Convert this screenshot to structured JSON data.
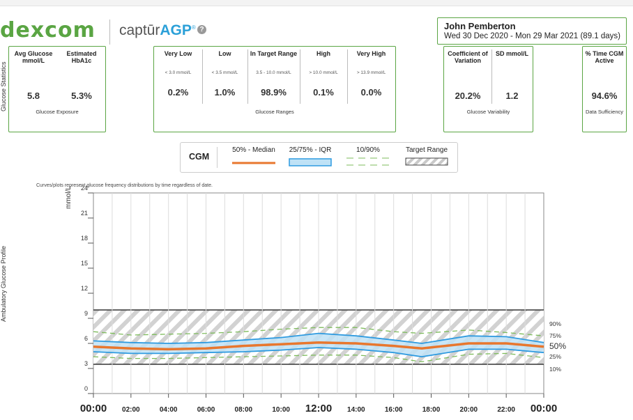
{
  "header": {
    "brand": "dexcom",
    "product_prefix": "captūr",
    "product_suffix": "AGP",
    "product_mark": "®",
    "help": "?",
    "patient_name": "John Pemberton",
    "date_range": "Wed 30 Dec 2020 - Mon 29 Mar 2021",
    "days": "(89.1 days)"
  },
  "side_labels": {
    "stats": "Glucose Statistics",
    "profile": "Ambulatory Glucose Profile"
  },
  "exposure": {
    "avg_title": "Avg Glucose mmol/L",
    "avg_value": "5.8",
    "a1c_title": "Estimated HbA1c",
    "a1c_value": "5.3%",
    "footer": "Glucose Exposure"
  },
  "ranges": {
    "items": [
      {
        "title": "Very Low",
        "sub": "< 3.0 mmol/L",
        "value": "0.2%"
      },
      {
        "title": "Low",
        "sub": "< 3.5 mmol/L",
        "value": "1.0%"
      },
      {
        "title": "In Target Range",
        "sub": "3.5 - 10.0 mmol/L",
        "value": "98.9%"
      },
      {
        "title": "High",
        "sub": "> 10.0 mmol/L",
        "value": "0.1%"
      },
      {
        "title": "Very High",
        "sub": "> 13.9 mmol/L",
        "value": "0.0%"
      }
    ],
    "footer": "Glucose Ranges"
  },
  "variability": {
    "cv_title": "Coefficient of Variation",
    "cv_value": "20.2%",
    "sd_title": "SD mmol/L",
    "sd_value": "1.2",
    "footer": "Glucose Variability"
  },
  "sufficiency": {
    "title": "% Time CGM Active",
    "value": "94.6%",
    "footer": "Data Sufficiency"
  },
  "legend": {
    "title": "CGM",
    "median": "50% - Median",
    "iqr": "25/75% - IQR",
    "pct": "10/90%",
    "target": "Target Range"
  },
  "note": "Curves/plots represent glucose frequency distributions by time regardless of date.",
  "colors": {
    "brand_green": "#5aa543",
    "median": "#e8772e",
    "iqr_line": "#2f9be0",
    "iqr_fill": "#bfe2f6",
    "pct_line": "#7dbb5b",
    "target_stripe": "#c9c9c9",
    "accent_blue": "#2ba0d8"
  },
  "chart_data": {
    "type": "line",
    "ylabel": "mmol/L",
    "ylim": [
      0,
      24
    ],
    "yticks": [
      "0",
      "3",
      "6",
      "9",
      "12",
      "15",
      "18",
      "21",
      "24"
    ],
    "xticks": [
      "00:00",
      "02:00",
      "04:00",
      "06:00",
      "08:00",
      "10:00",
      "12:00",
      "14:00",
      "16:00",
      "18:00",
      "20:00",
      "22:00",
      "00:00"
    ],
    "xlim_hours": [
      0,
      24
    ],
    "target_range": [
      3.5,
      10.0
    ],
    "percentile_labels": [
      "90%",
      "75%",
      "50%",
      "25%",
      "10%"
    ],
    "x_hours": [
      0,
      2,
      4,
      6,
      8,
      10,
      12,
      14,
      16,
      17.5,
      20,
      22,
      24
    ],
    "series": [
      {
        "name": "90%",
        "values": [
          7.4,
          7.0,
          7.1,
          7.2,
          7.4,
          7.7,
          7.9,
          7.9,
          7.4,
          7.2,
          7.6,
          7.3,
          6.9
        ]
      },
      {
        "name": "75%",
        "values": [
          6.3,
          6.1,
          6.0,
          6.1,
          6.4,
          6.7,
          7.2,
          6.9,
          6.4,
          6.0,
          6.9,
          6.8,
          6.1
        ]
      },
      {
        "name": "50%",
        "values": [
          5.6,
          5.4,
          5.3,
          5.4,
          5.7,
          5.9,
          6.1,
          6.0,
          5.7,
          5.4,
          6.0,
          6.0,
          5.6
        ]
      },
      {
        "name": "25%",
        "values": [
          5.0,
          4.8,
          4.8,
          4.9,
          5.0,
          5.2,
          5.5,
          5.3,
          4.9,
          4.4,
          5.3,
          5.3,
          4.9
        ]
      },
      {
        "name": "10%",
        "values": [
          4.4,
          4.2,
          4.2,
          4.3,
          4.4,
          4.5,
          4.6,
          4.6,
          4.3,
          3.8,
          4.7,
          4.8,
          4.3
        ]
      }
    ]
  }
}
